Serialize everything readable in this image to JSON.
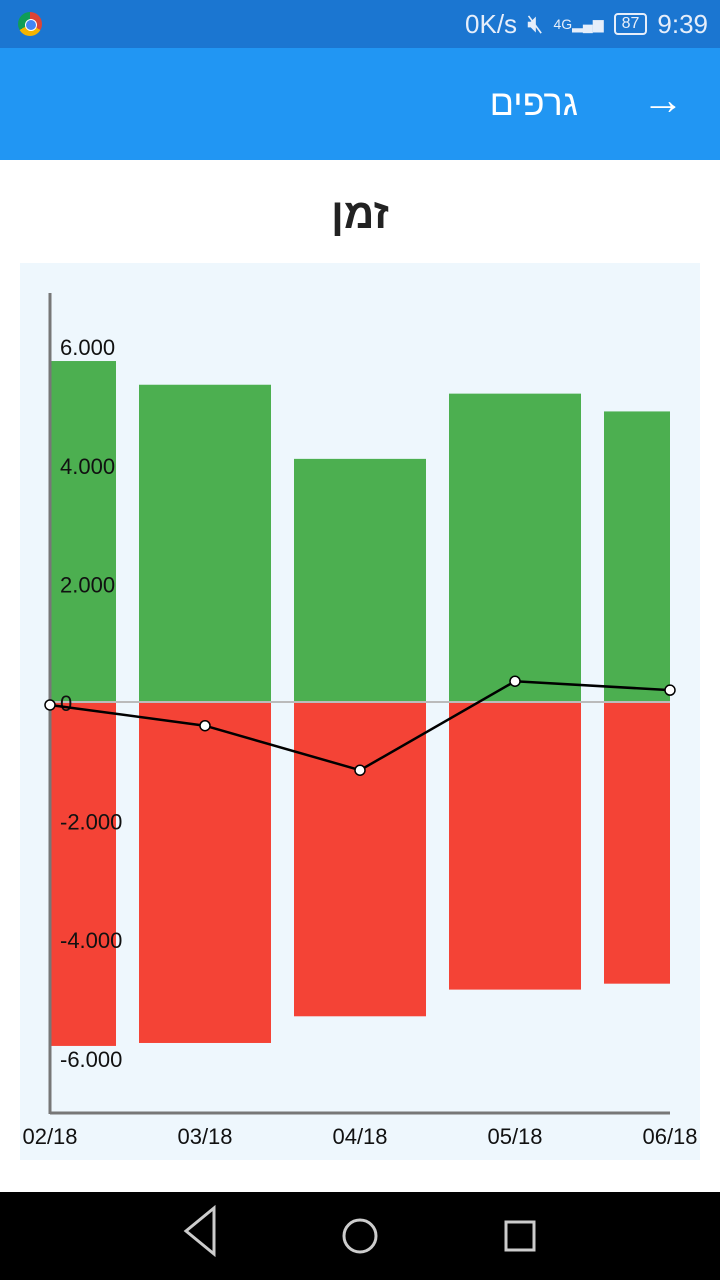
{
  "status_bar": {
    "speed": "0K/s",
    "network": "4G",
    "battery": "87",
    "time": "9:39",
    "icons": [
      "chrome-icon",
      "mute-icon",
      "signal-icon",
      "battery-icon"
    ]
  },
  "app_bar": {
    "title": "גרפים",
    "back_icon": "arrow-right-icon"
  },
  "chart_data": {
    "type": "bar",
    "title": "זמן",
    "categories": [
      "02/18",
      "03/18",
      "04/18",
      "05/18",
      "06/18"
    ],
    "series": [
      {
        "type": "bar",
        "color": "#4caf50",
        "values": [
          5750,
          5350,
          4100,
          5200,
          4900
        ]
      },
      {
        "type": "bar",
        "color": "#f44336",
        "values": [
          -5800,
          -5750,
          -5300,
          -4850,
          -4750
        ]
      },
      {
        "type": "line",
        "color": "#000000",
        "values": [
          -50,
          -400,
          -1150,
          350,
          200
        ]
      }
    ],
    "yticks": [
      "6.000",
      "4.000",
      "2.000",
      "0",
      "-2.000",
      "-4.000",
      "-6.000"
    ],
    "ytick_values": [
      6000,
      4000,
      2000,
      0,
      -2000,
      -4000,
      -6000
    ],
    "ylim": [
      -7000,
      7000
    ],
    "xlabel": "",
    "ylabel": "",
    "grid": false,
    "background": "#eef7fd"
  },
  "nav_bar": {
    "icons": [
      "back-icon",
      "home-icon",
      "recents-icon"
    ]
  }
}
